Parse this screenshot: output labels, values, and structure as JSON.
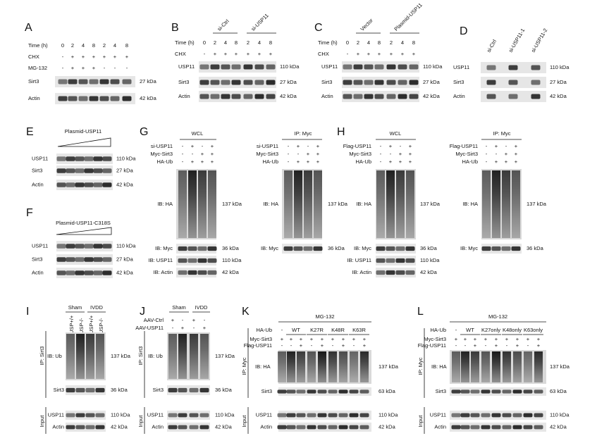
{
  "panels": [
    {
      "letter": "A",
      "header_rows": [
        {
          "label": "Time (h)",
          "cells": [
            "0",
            "2",
            "4",
            "8",
            "2",
            "4",
            "8"
          ]
        },
        {
          "label": "CHX",
          "cells": [
            "-",
            "+",
            "+",
            "+",
            "+",
            "+",
            "+"
          ]
        },
        {
          "label": "MG-132",
          "cells": [
            "-",
            "+",
            "+",
            "+",
            "-",
            "-",
            "-"
          ]
        }
      ],
      "blots": [
        {
          "label": "Sirt3",
          "size": "27 kDa"
        },
        {
          "label": "Actin",
          "size": "42 kDa"
        }
      ]
    },
    {
      "letter": "B",
      "groups": [
        "si-Ctrl",
        "si-USP11"
      ],
      "header_rows": [
        {
          "label": "Time (h)",
          "cells": [
            "0",
            "2",
            "4",
            "8",
            "2",
            "4",
            "8"
          ]
        },
        {
          "label": "CHX",
          "cells": [
            "-",
            "+",
            "+",
            "+",
            "+",
            "+",
            "+"
          ]
        }
      ],
      "blots": [
        {
          "label": "USP11",
          "size": "110 kDa"
        },
        {
          "label": "Sirt3",
          "size": "27 kDa"
        },
        {
          "label": "Actin",
          "size": "42 kDa"
        }
      ]
    },
    {
      "letter": "C",
      "groups": [
        "Vector",
        "Plasmid-USP11"
      ],
      "header_rows": [
        {
          "label": "Time (h)",
          "cells": [
            "0",
            "2",
            "4",
            "8",
            "2",
            "4",
            "8"
          ]
        },
        {
          "label": "CHX",
          "cells": [
            "-",
            "+",
            "+",
            "+",
            "+",
            "+",
            "+"
          ]
        }
      ],
      "blots": [
        {
          "label": "USP11",
          "size": "110 kDa"
        },
        {
          "label": "Sirt3",
          "size": "27 kDa"
        },
        {
          "label": "Actin",
          "size": "42 kDa"
        }
      ]
    },
    {
      "letter": "D",
      "lanes": [
        "si-Ctrl",
        "si-USP11-1",
        "si-USP11-2"
      ],
      "blots": [
        {
          "label": "USP11",
          "size": "110 kDa"
        },
        {
          "label": "Sirt3",
          "size": "27 kDa"
        },
        {
          "label": "Actin",
          "size": "42 kDa"
        }
      ]
    },
    {
      "letter": "E",
      "treatment": "Plasmid-USP11",
      "blots": [
        {
          "label": "USP11",
          "size": "110 kDa"
        },
        {
          "label": "Sirt3",
          "size": "27 kDa"
        },
        {
          "label": "Actin",
          "size": "42 kDa"
        }
      ]
    },
    {
      "letter": "F",
      "treatment": "Plasmid-USP11-C318S",
      "blots": [
        {
          "label": "USP11",
          "size": "110 kDa"
        },
        {
          "label": "Sirt3",
          "size": "27 kDa"
        },
        {
          "label": "Actin",
          "size": "42 kDa"
        }
      ]
    },
    {
      "letter": "G",
      "blocks": [
        {
          "title": "WCL",
          "header_rows": [
            {
              "label": "si-USP11",
              "cells": [
                "-",
                "+",
                "-",
                "+"
              ]
            },
            {
              "label": "Myc-Sirt3",
              "cells": [
                "-",
                "-",
                "+",
                "+"
              ]
            },
            {
              "label": "HA-Ub",
              "cells": [
                "-",
                "+",
                "+",
                "+"
              ]
            }
          ],
          "blots": [
            {
              "label": "IB: HA",
              "size": "137 kDa"
            },
            {
              "label": "IB: Myc",
              "size": "36 kDa"
            },
            {
              "label": "IB: USP11",
              "size": "110 kDa"
            },
            {
              "label": "IB: Actin",
              "size": "42 kDa"
            }
          ]
        },
        {
          "title": "IP: Myc",
          "header_rows": [
            {
              "label": "si-USP11",
              "cells": [
                "-",
                "+",
                "-",
                "+"
              ]
            },
            {
              "label": "Myc-Sirt3",
              "cells": [
                "-",
                "-",
                "+",
                "+"
              ]
            },
            {
              "label": "HA-Ub",
              "cells": [
                "-",
                "+",
                "+",
                "+"
              ]
            }
          ],
          "blots": [
            {
              "label": "IB: HA",
              "size": "137 kDa"
            },
            {
              "label": "IB: Myc",
              "size": "36 kDa"
            }
          ]
        }
      ]
    },
    {
      "letter": "H",
      "blocks": [
        {
          "title": "WCL",
          "header_rows": [
            {
              "label": "Flag-USP11",
              "cells": [
                "-",
                "+",
                "-",
                "+"
              ]
            },
            {
              "label": "Myc-Sirt3",
              "cells": [
                "-",
                "-",
                "+",
                "+"
              ]
            },
            {
              "label": "HA-Ub",
              "cells": [
                "-",
                "+",
                "+",
                "+"
              ]
            }
          ],
          "blots": [
            {
              "label": "IB: HA",
              "size": "137 kDa"
            },
            {
              "label": "IB: Myc",
              "size": "36 kDa"
            },
            {
              "label": "IB: USP11",
              "size": "110 kDa"
            },
            {
              "label": "IB: Actin",
              "size": "42 kDa"
            }
          ]
        },
        {
          "title": "IP: Myc",
          "header_rows": [
            {
              "label": "Flag-USP11",
              "cells": [
                "-",
                "+",
                "-",
                "+"
              ]
            },
            {
              "label": "Myc-Sirt3",
              "cells": [
                "-",
                "-",
                "+",
                "+"
              ]
            },
            {
              "label": "HA-Ub",
              "cells": [
                "-",
                "+",
                "+",
                "+"
              ]
            }
          ],
          "blots": [
            {
              "label": "IB: HA",
              "size": "137 kDa"
            },
            {
              "label": "IB: Myc",
              "size": "36 kDa"
            }
          ]
        }
      ]
    },
    {
      "letter": "I",
      "groups": [
        "Sham",
        "IVDD"
      ],
      "lanes": [
        "USP+/+",
        "USP-/-",
        "USP+/+",
        "USP-/-"
      ],
      "sections": [
        {
          "side_label": "IP: Sirt3",
          "blots": [
            {
              "label": "IB: Ub",
              "size": "137 kDa"
            },
            {
              "label": "Sirt3",
              "size": "36 kDa"
            }
          ]
        },
        {
          "side_label": "Input",
          "blots": [
            {
              "label": "USP11",
              "size": "110 kDa"
            },
            {
              "label": "Actin",
              "size": "42 kDa"
            }
          ]
        }
      ]
    },
    {
      "letter": "J",
      "groups": [
        "Sham",
        "IVDD"
      ],
      "header_rows": [
        {
          "label": "AAV-Ctrl",
          "cells": [
            "+",
            "-",
            "+",
            "-"
          ]
        },
        {
          "label": "AAV-USP11",
          "cells": [
            "-",
            "+",
            "-",
            "+"
          ]
        }
      ],
      "sections": [
        {
          "side_label": "IP: Sirt3",
          "blots": [
            {
              "label": "IB: Ub",
              "size": "137 kDa"
            },
            {
              "label": "Sirt3",
              "size": "36 kDa"
            }
          ]
        },
        {
          "side_label": "Input",
          "blots": [
            {
              "label": "USP11",
              "size": "110 kDa"
            },
            {
              "label": "Actin",
              "size": "42 kDa"
            }
          ]
        }
      ]
    },
    {
      "letter": "K",
      "treatment": "MG-132",
      "header_rows": [
        {
          "label": "HA-Ub",
          "cells": [
            "-",
            "WT",
            "K27R",
            "K48R",
            "K63R"
          ]
        },
        {
          "label": "Myc-Sirt3",
          "cells": [
            "+",
            "+",
            "+",
            "+",
            "+",
            "+",
            "+",
            "+",
            "+"
          ]
        },
        {
          "label": "Flag-USP11",
          "cells": [
            "-",
            "-",
            "+",
            "-",
            "+",
            "-",
            "+",
            "-",
            "+"
          ]
        }
      ],
      "sections": [
        {
          "side_label": "IP: Myc",
          "blots": [
            {
              "label": "IB: HA",
              "size": "137 kDa"
            },
            {
              "label": "Sirt3",
              "size": "63 kDa"
            }
          ]
        },
        {
          "side_label": "Input",
          "blots": [
            {
              "label": "USP11",
              "size": "110 kDa"
            },
            {
              "label": "Actin",
              "size": "42 kDa"
            }
          ]
        }
      ]
    },
    {
      "letter": "L",
      "treatment": "MG-132",
      "header_rows": [
        {
          "label": "HA-Ub",
          "cells": [
            "-",
            "WT",
            "K27only",
            "K48only",
            "K63only"
          ]
        },
        {
          "label": "Myc-Sirt3",
          "cells": [
            "+",
            "+",
            "+",
            "+",
            "+",
            "+",
            "+",
            "+",
            "+"
          ]
        },
        {
          "label": "Flag-USP11",
          "cells": [
            "-",
            "-",
            "+",
            "-",
            "+",
            "-",
            "+",
            "-",
            "+"
          ]
        }
      ],
      "sections": [
        {
          "side_label": "IP: Myc",
          "blots": [
            {
              "label": "IB: HA",
              "size": "137 kDa"
            },
            {
              "label": "Sirt3",
              "size": "63 kDa"
            }
          ]
        },
        {
          "side_label": "Input",
          "blots": [
            {
              "label": "USP11",
              "size": "110 kDa"
            },
            {
              "label": "Actin",
              "size": "42 kDa"
            }
          ]
        }
      ]
    }
  ]
}
